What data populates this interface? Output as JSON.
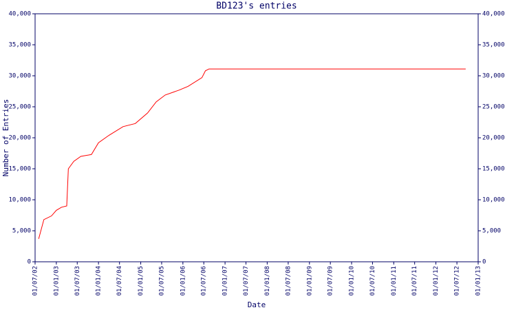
{
  "chart_data": {
    "type": "line",
    "title": "BD123's entries",
    "x_label": "Date",
    "y_label": "Number of Entries",
    "x": [
      "2002-08-01",
      "2002-09-15",
      "2002-11-20",
      "2003-01-01",
      "2003-02-15",
      "2003-04-01",
      "2003-04-15",
      "2003-06-01",
      "2003-08-01",
      "2003-11-01",
      "2004-01-01",
      "2004-04-01",
      "2004-08-01",
      "2004-11-15",
      "2005-03-01",
      "2005-05-15",
      "2005-08-01",
      "2005-12-01",
      "2006-02-15",
      "2006-06-15",
      "2006-07-15",
      "2006-08-15",
      "2012-09-15"
    ],
    "series": [
      {
        "name": "BD123",
        "color": "#ff0000",
        "values": [
          3700,
          6800,
          7400,
          8300,
          8800,
          9000,
          15000,
          16200,
          17000,
          17300,
          19200,
          20400,
          21800,
          22300,
          24000,
          25800,
          26900,
          27700,
          28300,
          29700,
          30800,
          31100,
          31100
        ]
      }
    ],
    "xlim": [
      "2002-07-01",
      "2013-01-01"
    ],
    "xticks": [
      {
        "value": "2002-07-01",
        "label": "01/07/02"
      },
      {
        "value": "2003-01-01",
        "label": "01/01/03"
      },
      {
        "value": "2003-07-01",
        "label": "01/07/03"
      },
      {
        "value": "2004-01-01",
        "label": "01/01/04"
      },
      {
        "value": "2004-07-01",
        "label": "01/07/04"
      },
      {
        "value": "2005-01-01",
        "label": "01/01/05"
      },
      {
        "value": "2005-07-01",
        "label": "01/07/05"
      },
      {
        "value": "2006-01-01",
        "label": "01/01/06"
      },
      {
        "value": "2006-07-01",
        "label": "01/07/06"
      },
      {
        "value": "2007-01-01",
        "label": "01/01/07"
      },
      {
        "value": "2007-07-01",
        "label": "01/07/07"
      },
      {
        "value": "2008-01-01",
        "label": "01/01/08"
      },
      {
        "value": "2008-07-01",
        "label": "01/07/08"
      },
      {
        "value": "2009-01-01",
        "label": "01/01/09"
      },
      {
        "value": "2009-07-01",
        "label": "01/07/09"
      },
      {
        "value": "2010-01-01",
        "label": "01/01/10"
      },
      {
        "value": "2010-07-01",
        "label": "01/07/10"
      },
      {
        "value": "2011-01-01",
        "label": "01/01/11"
      },
      {
        "value": "2011-07-01",
        "label": "01/07/11"
      },
      {
        "value": "2012-01-01",
        "label": "01/01/12"
      },
      {
        "value": "2012-07-01",
        "label": "01/07/12"
      },
      {
        "value": "2013-01-01",
        "label": "01/01/13"
      }
    ],
    "ylim": [
      0,
      40000
    ],
    "yticks": [
      0,
      {
        "value": 5000,
        "label": "5,000"
      },
      {
        "value": 10000,
        "label": "10,000"
      },
      {
        "value": 15000,
        "label": "15,000"
      },
      {
        "value": 20000,
        "label": "20,000"
      },
      {
        "value": 25000,
        "label": "25,000"
      },
      {
        "value": 30000,
        "label": "30,000"
      },
      {
        "value": 35000,
        "label": "35,000"
      },
      {
        "value": 40000,
        "label": "40,000"
      }
    ],
    "y2lim": [
      0,
      40000
    ],
    "y2ticks": [
      0,
      {
        "value": 5000,
        "label": "5,000"
      },
      {
        "value": 10000,
        "label": "10,000"
      },
      {
        "value": 15000,
        "label": "15,000"
      },
      {
        "value": 20000,
        "label": "20,000"
      },
      {
        "value": 25000,
        "label": "25,000"
      },
      {
        "value": 30000,
        "label": "30,000"
      },
      {
        "value": 35000,
        "label": "35,000"
      },
      {
        "value": 40000,
        "label": "40,000"
      }
    ]
  }
}
